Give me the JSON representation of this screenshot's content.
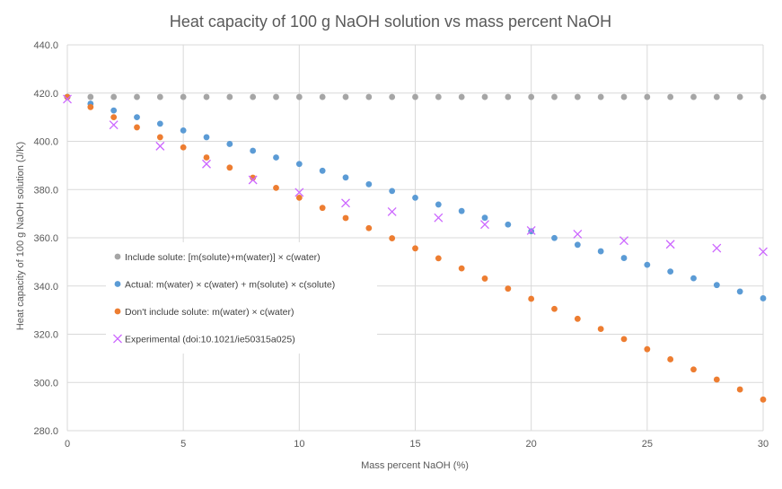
{
  "chart_data": {
    "type": "scatter",
    "title": "Heat capacity of 100 g NaOH solution vs mass percent NaOH",
    "xlabel": "Mass percent NaOH (%)",
    "ylabel": "Heat capacity of 100 g NaOH solution (J/K)",
    "xlim": [
      0,
      30
    ],
    "ylim": [
      280,
      440
    ],
    "x_ticks": [
      0,
      5,
      10,
      15,
      20,
      25,
      30
    ],
    "y_ticks": [
      "280.0",
      "300.0",
      "320.0",
      "340.0",
      "360.0",
      "380.0",
      "400.0",
      "420.0",
      "440.0"
    ],
    "grid": true,
    "legend_position": "left-inside",
    "series": [
      {
        "name": "Include solute: [m(solute)+m(water)] × c(water)",
        "color": "#a5a5a5",
        "marker": "circle",
        "x": [
          0,
          1,
          2,
          3,
          4,
          5,
          6,
          7,
          8,
          9,
          10,
          11,
          12,
          13,
          14,
          15,
          16,
          17,
          18,
          19,
          20,
          21,
          22,
          23,
          24,
          25,
          26,
          27,
          28,
          29,
          30
        ],
        "y": [
          418.4,
          418.4,
          418.4,
          418.4,
          418.4,
          418.4,
          418.4,
          418.4,
          418.4,
          418.4,
          418.4,
          418.4,
          418.4,
          418.4,
          418.4,
          418.4,
          418.4,
          418.4,
          418.4,
          418.4,
          418.4,
          418.4,
          418.4,
          418.4,
          418.4,
          418.4,
          418.4,
          418.4,
          418.4,
          418.4,
          418.4
        ]
      },
      {
        "name": "Actual: m(water) × c(water) + m(solute) × c(solute)",
        "color": "#5b9bd5",
        "marker": "circle",
        "x": [
          0,
          1,
          2,
          3,
          4,
          5,
          6,
          7,
          8,
          9,
          10,
          11,
          12,
          13,
          14,
          15,
          16,
          17,
          18,
          19,
          20,
          21,
          22,
          23,
          24,
          25,
          26,
          27,
          28,
          29,
          30
        ],
        "y": [
          418.4,
          415.6,
          412.8,
          410.0,
          407.3,
          404.5,
          401.7,
          398.9,
          396.1,
          393.3,
          390.6,
          387.8,
          385.0,
          382.2,
          379.4,
          376.6,
          373.8,
          371.1,
          368.3,
          365.5,
          362.7,
          359.9,
          357.1,
          354.4,
          351.6,
          348.8,
          346.0,
          343.2,
          340.4,
          337.7,
          334.9
        ]
      },
      {
        "name": "Don't include solute: m(water) × c(water)",
        "color": "#ed7d31",
        "marker": "circle",
        "x": [
          0,
          1,
          2,
          3,
          4,
          5,
          6,
          7,
          8,
          9,
          10,
          11,
          12,
          13,
          14,
          15,
          16,
          17,
          18,
          19,
          20,
          21,
          22,
          23,
          24,
          25,
          26,
          27,
          28,
          29,
          30
        ],
        "y": [
          418.4,
          414.2,
          410.0,
          405.8,
          401.7,
          397.5,
          393.3,
          389.1,
          384.9,
          380.7,
          376.6,
          372.4,
          368.2,
          364.0,
          359.8,
          355.6,
          351.5,
          347.3,
          343.1,
          338.9,
          334.7,
          330.5,
          326.4,
          322.2,
          318.0,
          313.8,
          309.6,
          305.4,
          301.2,
          297.1,
          292.9
        ]
      },
      {
        "name": "Experimental (doi:10.1021/ie50315a025)",
        "color": "#cc66ff",
        "marker": "x",
        "x": [
          0,
          2,
          4,
          6,
          8,
          10,
          12,
          14,
          16,
          18,
          20,
          22,
          24,
          26,
          28,
          30
        ],
        "y": [
          417.5,
          406.8,
          398.0,
          390.6,
          384.0,
          378.8,
          374.4,
          370.8,
          368.3,
          365.5,
          363.0,
          361.5,
          358.8,
          357.3,
          355.7,
          354.2
        ]
      }
    ]
  }
}
